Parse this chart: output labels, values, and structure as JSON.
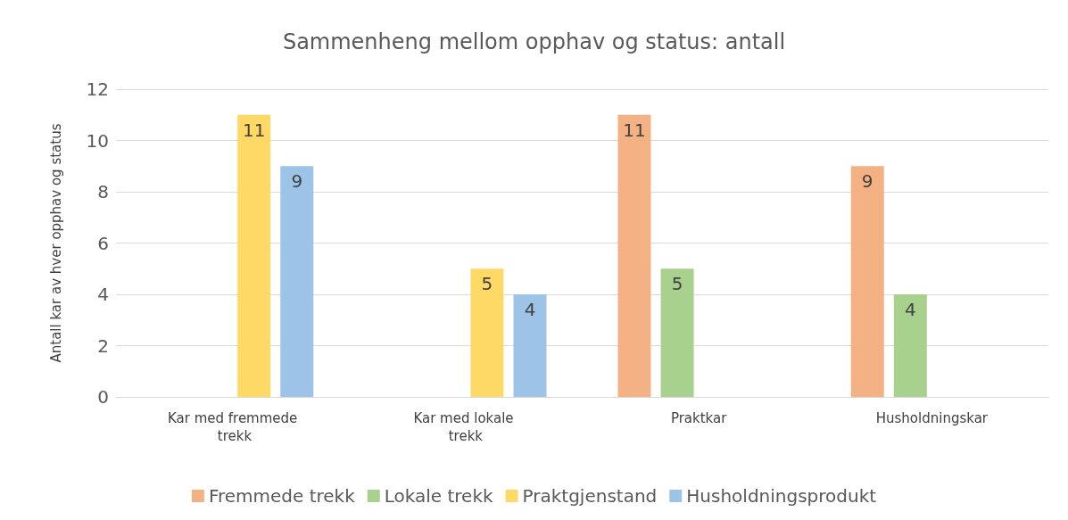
{
  "chart_data": {
    "type": "bar",
    "title": "Sammenheng mellom opphav og status: antall",
    "ylabel": "Antall kar av hver opphav og status",
    "categories": [
      "Kar med fremmede trekk",
      "Kar med lokale trekk",
      "Praktkar",
      "Husholdningskar"
    ],
    "series": [
      {
        "name": "Fremmede trekk",
        "color": "#f4b183",
        "values": [
          null,
          null,
          11,
          9
        ]
      },
      {
        "name": "Lokale trekk",
        "color": "#a9d18e",
        "values": [
          null,
          null,
          5,
          4
        ]
      },
      {
        "name": "Praktgjenstand",
        "color": "#ffd966",
        "values": [
          11,
          5,
          null,
          null
        ]
      },
      {
        "name": "Husholdningsprodukt",
        "color": "#9dc3e6",
        "values": [
          9,
          4,
          null,
          null
        ]
      }
    ],
    "ylim": [
      0,
      12
    ],
    "yticks": [
      0,
      2,
      4,
      6,
      8,
      10,
      12
    ],
    "grid": "y",
    "legend": "bottom",
    "data_labels": true
  }
}
